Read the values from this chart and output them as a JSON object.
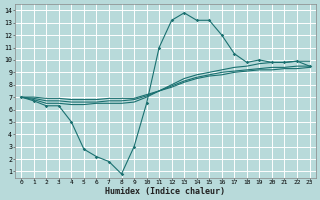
{
  "xlabel": "Humidex (Indice chaleur)",
  "bg_color": "#b8dada",
  "grid_color": "#ffffff",
  "line_color": "#1a7070",
  "xlim": [
    -0.5,
    23.5
  ],
  "ylim": [
    0.5,
    14.5
  ],
  "xticks": [
    0,
    1,
    2,
    3,
    4,
    5,
    6,
    7,
    8,
    9,
    10,
    11,
    12,
    13,
    14,
    15,
    16,
    17,
    18,
    19,
    20,
    21,
    22,
    23
  ],
  "yticks": [
    1,
    2,
    3,
    4,
    5,
    6,
    7,
    8,
    9,
    10,
    11,
    12,
    13,
    14
  ],
  "line1_x": [
    0,
    1,
    2,
    3,
    4,
    5,
    6,
    7,
    8,
    9,
    10,
    11,
    12,
    13,
    14,
    15,
    16,
    17,
    18,
    19,
    20,
    21,
    22,
    23
  ],
  "line1_y": [
    7.0,
    6.7,
    6.3,
    6.3,
    5.0,
    2.8,
    2.2,
    1.8,
    0.8,
    3.0,
    6.5,
    11.0,
    13.2,
    13.8,
    13.2,
    13.2,
    12.0,
    10.5,
    9.8,
    10.0,
    9.8,
    9.8,
    9.9,
    9.5
  ],
  "line2_x": [
    0,
    1,
    2,
    3,
    4,
    5,
    6,
    7,
    8,
    9,
    10,
    11,
    12,
    13,
    14,
    15,
    16,
    17,
    18,
    19,
    20,
    21,
    22,
    23
  ],
  "line2_y": [
    7.0,
    6.8,
    6.5,
    6.5,
    6.4,
    6.4,
    6.5,
    6.5,
    6.5,
    6.6,
    7.0,
    7.5,
    8.0,
    8.5,
    8.8,
    9.0,
    9.2,
    9.4,
    9.5,
    9.7,
    9.8,
    9.8,
    9.9,
    9.9
  ],
  "line3_x": [
    0,
    1,
    2,
    3,
    4,
    5,
    6,
    7,
    8,
    9,
    10,
    11,
    12,
    13,
    14,
    15,
    16,
    17,
    18,
    19,
    20,
    21,
    22,
    23
  ],
  "line3_y": [
    7.0,
    6.9,
    6.7,
    6.7,
    6.6,
    6.6,
    6.6,
    6.7,
    6.7,
    6.8,
    7.1,
    7.5,
    7.9,
    8.3,
    8.6,
    8.8,
    9.0,
    9.1,
    9.2,
    9.3,
    9.4,
    9.4,
    9.5,
    9.5
  ],
  "line4_x": [
    0,
    1,
    2,
    3,
    4,
    5,
    6,
    7,
    8,
    9,
    10,
    11,
    12,
    13,
    14,
    15,
    16,
    17,
    18,
    19,
    20,
    21,
    22,
    23
  ],
  "line4_y": [
    7.0,
    7.0,
    6.9,
    6.9,
    6.8,
    6.8,
    6.8,
    6.9,
    6.9,
    6.9,
    7.2,
    7.5,
    7.8,
    8.2,
    8.5,
    8.7,
    8.8,
    9.0,
    9.1,
    9.2,
    9.2,
    9.3,
    9.3,
    9.4
  ]
}
